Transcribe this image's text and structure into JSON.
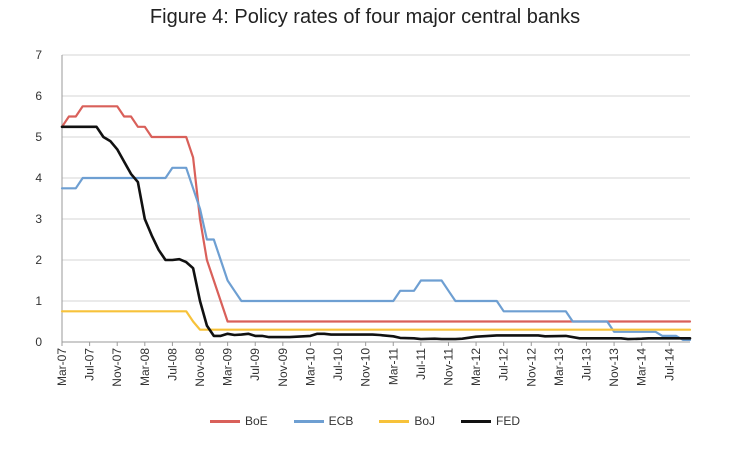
{
  "chart_data": {
    "type": "line",
    "title": "Figure 4: Policy rates of four major central banks",
    "xlabel": "",
    "ylabel": "",
    "ylim": [
      0,
      7
    ],
    "yticks": [
      "0",
      "1",
      "2",
      "3",
      "4",
      "5",
      "6",
      "7"
    ],
    "x_start": "2007-03",
    "x_end": "2014-10",
    "xticks": [
      "Mar-07",
      "Jul-07",
      "Nov-07",
      "Mar-08",
      "Jul-08",
      "Nov-08",
      "Mar-09",
      "Jul-09",
      "Nov-09",
      "Mar-10",
      "Jul-10",
      "Nov-10",
      "Mar-11",
      "Jul-11",
      "Nov-11",
      "Mar-12",
      "Jul-12",
      "Nov-12",
      "Mar-13",
      "Jul-13",
      "Nov-13",
      "Mar-14",
      "Jul-14"
    ],
    "xtick_dates": [
      "2007-03",
      "2007-07",
      "2007-11",
      "2008-03",
      "2008-07",
      "2008-11",
      "2009-03",
      "2009-07",
      "2009-11",
      "2010-03",
      "2010-07",
      "2010-11",
      "2011-03",
      "2011-07",
      "2011-11",
      "2012-03",
      "2012-07",
      "2012-11",
      "2013-03",
      "2013-07",
      "2013-11",
      "2014-03",
      "2014-07"
    ],
    "grid": true,
    "legend_position": "bottom",
    "series": [
      {
        "name": "BoE",
        "color": "#d9605a",
        "points": [
          [
            "2007-03",
            5.25
          ],
          [
            "2007-04",
            5.5
          ],
          [
            "2007-05",
            5.5
          ],
          [
            "2007-06",
            5.75
          ],
          [
            "2007-11",
            5.75
          ],
          [
            "2007-12",
            5.5
          ],
          [
            "2008-01",
            5.5
          ],
          [
            "2008-02",
            5.25
          ],
          [
            "2008-03",
            5.25
          ],
          [
            "2008-04",
            5.0
          ],
          [
            "2008-09",
            5.0
          ],
          [
            "2008-10",
            4.5
          ],
          [
            "2008-11",
            3.0
          ],
          [
            "2008-12",
            2.0
          ],
          [
            "2009-01",
            1.5
          ],
          [
            "2009-02",
            1.0
          ],
          [
            "2009-03",
            0.5
          ],
          [
            "2014-10",
            0.5
          ]
        ]
      },
      {
        "name": "ECB",
        "color": "#6e9fd2",
        "points": [
          [
            "2007-03",
            3.75
          ],
          [
            "2007-05",
            3.75
          ],
          [
            "2007-06",
            4.0
          ],
          [
            "2008-06",
            4.0
          ],
          [
            "2008-07",
            4.25
          ],
          [
            "2008-09",
            4.25
          ],
          [
            "2008-10",
            3.75
          ],
          [
            "2008-11",
            3.25
          ],
          [
            "2008-12",
            2.5
          ],
          [
            "2009-01",
            2.5
          ],
          [
            "2009-02",
            2.0
          ],
          [
            "2009-03",
            1.5
          ],
          [
            "2009-04",
            1.25
          ],
          [
            "2009-05",
            1.0
          ],
          [
            "2011-03",
            1.0
          ],
          [
            "2011-04",
            1.25
          ],
          [
            "2011-06",
            1.25
          ],
          [
            "2011-07",
            1.5
          ],
          [
            "2011-10",
            1.5
          ],
          [
            "2011-11",
            1.25
          ],
          [
            "2011-12",
            1.0
          ],
          [
            "2012-06",
            1.0
          ],
          [
            "2012-07",
            0.75
          ],
          [
            "2013-04",
            0.75
          ],
          [
            "2013-05",
            0.5
          ],
          [
            "2013-10",
            0.5
          ],
          [
            "2013-11",
            0.25
          ],
          [
            "2014-05",
            0.25
          ],
          [
            "2014-06",
            0.15
          ],
          [
            "2014-08",
            0.15
          ],
          [
            "2014-09",
            0.05
          ],
          [
            "2014-10",
            0.05
          ]
        ]
      },
      {
        "name": "BoJ",
        "color": "#f7c23a",
        "points": [
          [
            "2007-03",
            0.75
          ],
          [
            "2008-09",
            0.75
          ],
          [
            "2008-10",
            0.5
          ],
          [
            "2008-11",
            0.3
          ],
          [
            "2014-10",
            0.3
          ]
        ]
      },
      {
        "name": "FED",
        "color": "#111111",
        "points": [
          [
            "2007-03",
            5.25
          ],
          [
            "2007-08",
            5.25
          ],
          [
            "2007-09",
            5.0
          ],
          [
            "2007-10",
            4.9
          ],
          [
            "2007-11",
            4.7
          ],
          [
            "2007-12",
            4.4
          ],
          [
            "2008-01",
            4.1
          ],
          [
            "2008-02",
            3.9
          ],
          [
            "2008-03",
            3.0
          ],
          [
            "2008-04",
            2.6
          ],
          [
            "2008-05",
            2.25
          ],
          [
            "2008-06",
            2.0
          ],
          [
            "2008-07",
            2.0
          ],
          [
            "2008-08",
            2.02
          ],
          [
            "2008-09",
            1.95
          ],
          [
            "2008-10",
            1.8
          ],
          [
            "2008-11",
            1.0
          ],
          [
            "2008-12",
            0.4
          ],
          [
            "2009-01",
            0.15
          ],
          [
            "2009-02",
            0.15
          ],
          [
            "2009-03",
            0.2
          ],
          [
            "2009-04",
            0.17
          ],
          [
            "2009-05",
            0.18
          ],
          [
            "2009-06",
            0.2
          ],
          [
            "2009-07",
            0.15
          ],
          [
            "2009-08",
            0.15
          ],
          [
            "2009-09",
            0.12
          ],
          [
            "2009-12",
            0.12
          ],
          [
            "2010-03",
            0.15
          ],
          [
            "2010-04",
            0.2
          ],
          [
            "2010-05",
            0.2
          ],
          [
            "2010-06",
            0.18
          ],
          [
            "2010-12",
            0.18
          ],
          [
            "2011-01",
            0.17
          ],
          [
            "2011-03",
            0.14
          ],
          [
            "2011-04",
            0.1
          ],
          [
            "2011-06",
            0.09
          ],
          [
            "2011-07",
            0.07
          ],
          [
            "2011-09",
            0.08
          ],
          [
            "2011-10",
            0.07
          ],
          [
            "2011-12",
            0.07
          ],
          [
            "2012-01",
            0.08
          ],
          [
            "2012-03",
            0.13
          ],
          [
            "2012-06",
            0.16
          ],
          [
            "2012-12",
            0.16
          ],
          [
            "2013-01",
            0.14
          ],
          [
            "2013-04",
            0.15
          ],
          [
            "2013-06",
            0.09
          ],
          [
            "2013-12",
            0.09
          ],
          [
            "2014-01",
            0.07
          ],
          [
            "2014-03",
            0.08
          ],
          [
            "2014-04",
            0.09
          ],
          [
            "2014-07",
            0.09
          ],
          [
            "2014-10",
            0.09
          ]
        ]
      }
    ]
  }
}
